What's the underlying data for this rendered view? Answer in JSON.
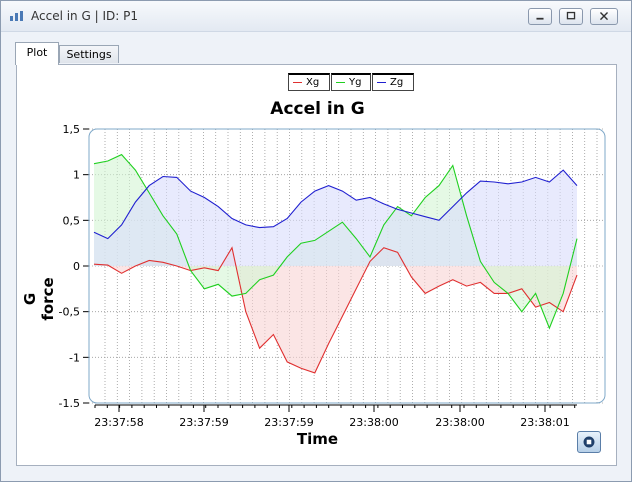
{
  "window": {
    "title": "Accel in G  |  ID: P1",
    "icon": "chart-app-icon"
  },
  "tabs": [
    {
      "label": "Plot",
      "active": true
    },
    {
      "label": "Settings",
      "active": false
    }
  ],
  "colors": {
    "xg": "#e03030",
    "yg": "#20d020",
    "zg": "#2020d0",
    "xg_fill": "#f9d3d3",
    "yg_fill": "#d3f5d3",
    "zg_fill": "#d9dcfb",
    "frame": "#7fa8c8"
  },
  "chart_data": {
    "type": "area",
    "title": "Accel in G",
    "xlabel": "Time",
    "ylabel": "G force",
    "ylim": [
      -1.5,
      1.5
    ],
    "yticks": [
      "1,5",
      "1",
      "0,5",
      "0",
      "-0,5",
      "-1",
      "-1.5"
    ],
    "xticks": [
      "23:37:58",
      "23:37:59",
      "23:37:59",
      "23:38:00",
      "23:38:00",
      "23:38:01"
    ],
    "grid": true,
    "legend_position": "top-center",
    "series": [
      {
        "name": "Xg",
        "values": [
          0.02,
          0.01,
          -0.08,
          0.0,
          0.06,
          0.04,
          0.0,
          -0.05,
          -0.02,
          -0.05,
          0.2,
          -0.5,
          -0.9,
          -0.75,
          -1.05,
          -1.12,
          -1.17,
          -0.85,
          -0.55,
          -0.25,
          0.05,
          0.2,
          0.15,
          -0.12,
          -0.3,
          -0.22,
          -0.15,
          -0.22,
          -0.18,
          -0.3,
          -0.3,
          -0.25,
          -0.45,
          -0.4,
          -0.5,
          -0.1
        ]
      },
      {
        "name": "Yg",
        "values": [
          1.12,
          1.15,
          1.22,
          1.05,
          0.8,
          0.55,
          0.35,
          -0.05,
          -0.25,
          -0.2,
          -0.33,
          -0.3,
          -0.15,
          -0.1,
          0.1,
          0.25,
          0.28,
          0.38,
          0.48,
          0.3,
          0.1,
          0.45,
          0.65,
          0.55,
          0.75,
          0.88,
          1.1,
          0.55,
          0.05,
          -0.18,
          -0.3,
          -0.5,
          -0.3,
          -0.68,
          -0.3,
          0.3
        ]
      },
      {
        "name": "Zg",
        "values": [
          0.37,
          0.3,
          0.45,
          0.7,
          0.88,
          0.98,
          0.97,
          0.82,
          0.75,
          0.65,
          0.52,
          0.45,
          0.42,
          0.43,
          0.52,
          0.7,
          0.82,
          0.88,
          0.82,
          0.72,
          0.75,
          0.68,
          0.62,
          0.58,
          0.54,
          0.5,
          0.65,
          0.8,
          0.93,
          0.92,
          0.9,
          0.92,
          0.97,
          0.92,
          1.05,
          0.88
        ]
      }
    ]
  }
}
